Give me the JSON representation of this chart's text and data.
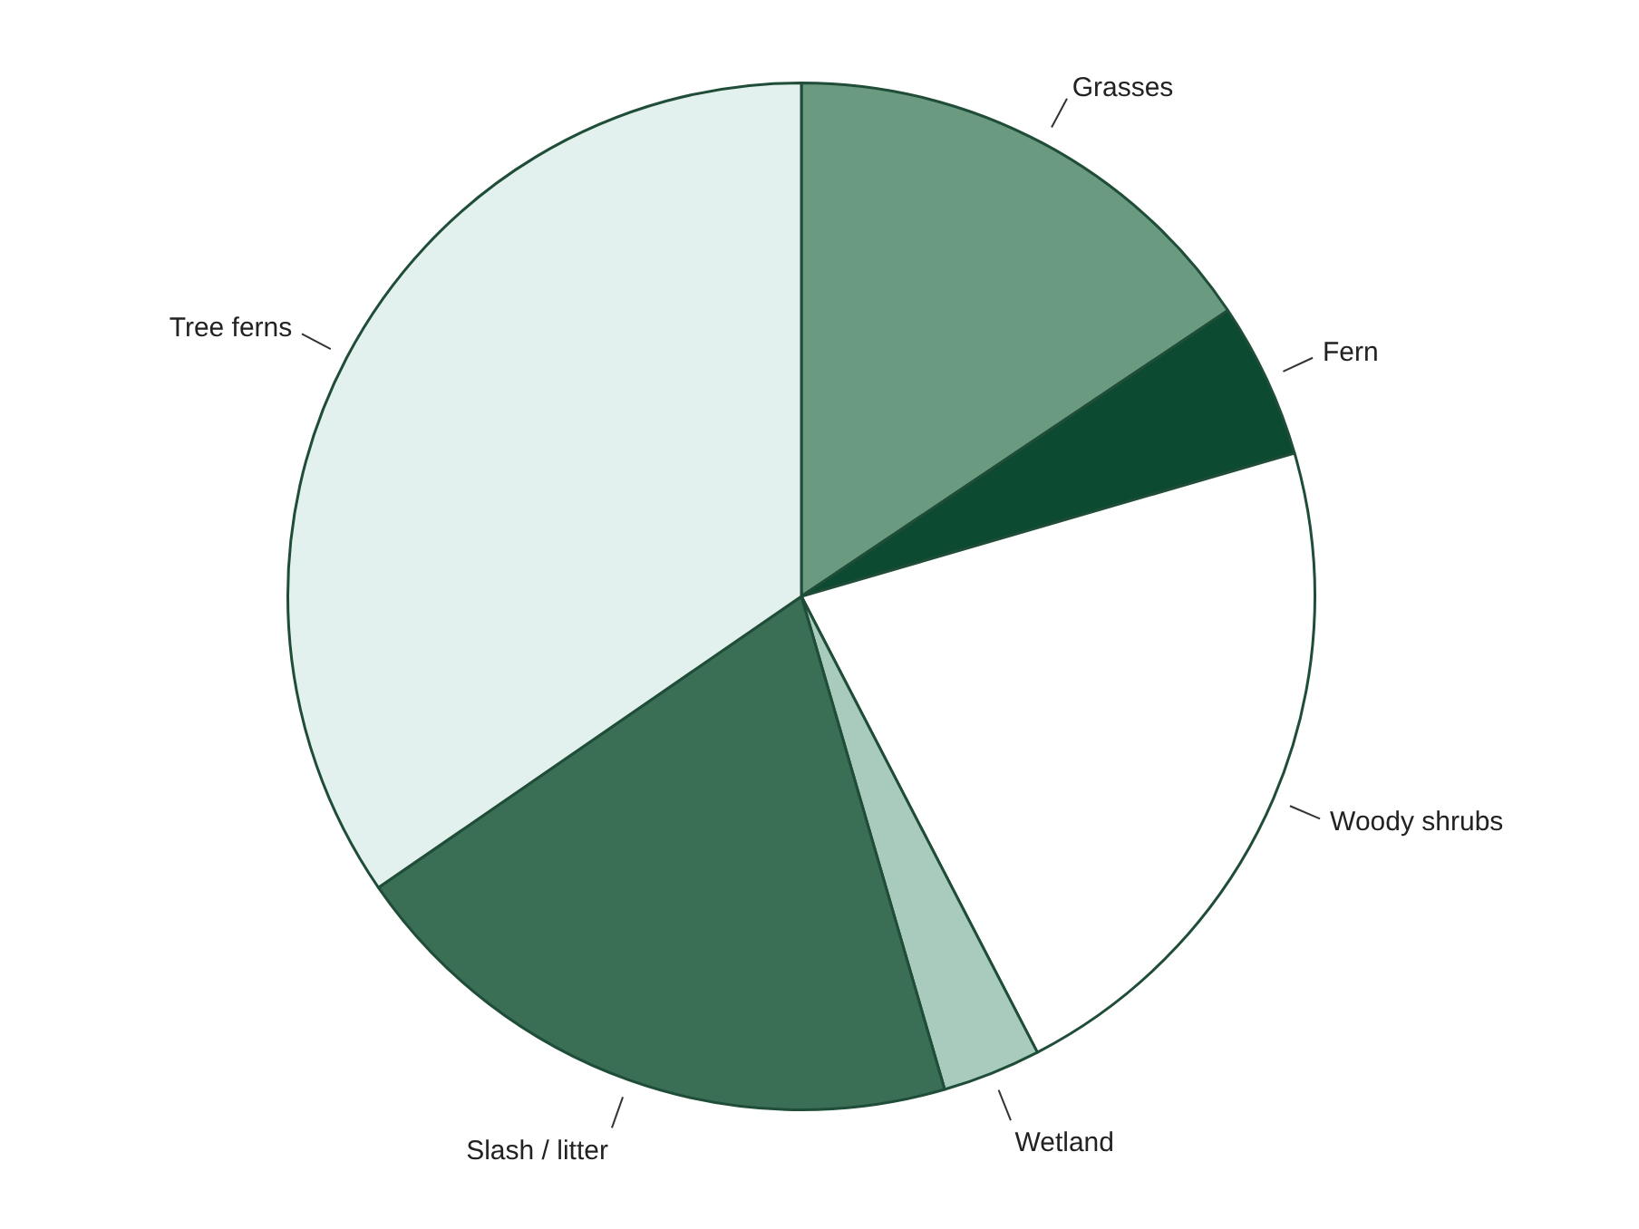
{
  "chart_data": {
    "type": "pie",
    "categories": [
      "Grasses",
      "Fern",
      "Woody shrubs",
      "Wetland",
      "Slash / litter",
      "Tree ferns"
    ],
    "values": [
      15.6,
      4.9,
      21.9,
      3.1,
      19.9,
      34.6
    ],
    "colors": [
      "#6a9a80",
      "#0d4a32",
      "#ffffff",
      "#a9cbbd",
      "#3a6e55",
      "#e3f1ee"
    ],
    "legend": false
  }
}
